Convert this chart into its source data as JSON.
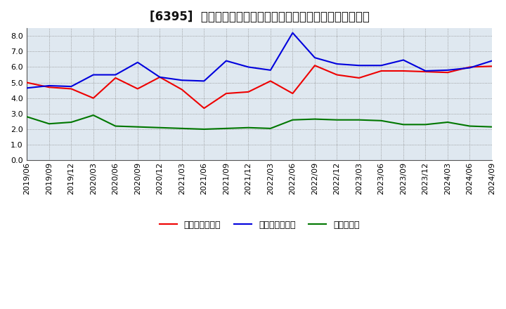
{
  "title": "[6395]  売上債権回転率、買入債務回転率、在庫回転率の推移",
  "ylim": [
    0.0,
    8.5
  ],
  "yticks": [
    0.0,
    1.0,
    2.0,
    3.0,
    4.0,
    5.0,
    6.0,
    7.0,
    8.0
  ],
  "background_color": "#ffffff",
  "plot_bg_color": "#dfe8f0",
  "grid_color": "#888888",
  "dates": [
    "2019/06",
    "2019/09",
    "2019/12",
    "2020/03",
    "2020/06",
    "2020/09",
    "2020/12",
    "2021/03",
    "2021/06",
    "2021/09",
    "2021/12",
    "2022/03",
    "2022/06",
    "2022/09",
    "2022/12",
    "2023/03",
    "2023/06",
    "2023/09",
    "2023/12",
    "2024/03",
    "2024/06",
    "2024/09"
  ],
  "uriage": [
    5.0,
    4.7,
    4.6,
    4.0,
    5.3,
    4.6,
    5.35,
    4.55,
    3.35,
    4.3,
    4.4,
    5.1,
    4.3,
    6.1,
    5.5,
    5.3,
    5.75,
    5.75,
    5.7,
    5.65,
    6.0,
    6.05
  ],
  "kaiire": [
    4.65,
    4.8,
    4.75,
    5.5,
    5.5,
    6.3,
    5.35,
    5.15,
    5.1,
    6.4,
    6.0,
    5.8,
    8.2,
    6.6,
    6.2,
    6.1,
    6.1,
    6.45,
    5.75,
    5.8,
    5.95,
    6.4
  ],
  "zaiko": [
    2.8,
    2.35,
    2.45,
    2.9,
    2.2,
    2.15,
    2.1,
    2.05,
    2.0,
    2.05,
    2.1,
    2.05,
    2.6,
    2.65,
    2.6,
    2.6,
    2.55,
    2.3,
    2.3,
    2.45,
    2.2,
    2.15
  ],
  "line_colors": [
    "#ee0000",
    "#0000dd",
    "#007700"
  ],
  "legend_labels": [
    "売上債権回転率",
    "買入債務回転率",
    "在庫回転率"
  ],
  "title_fontsize": 12,
  "tick_fontsize": 8,
  "legend_fontsize": 9
}
